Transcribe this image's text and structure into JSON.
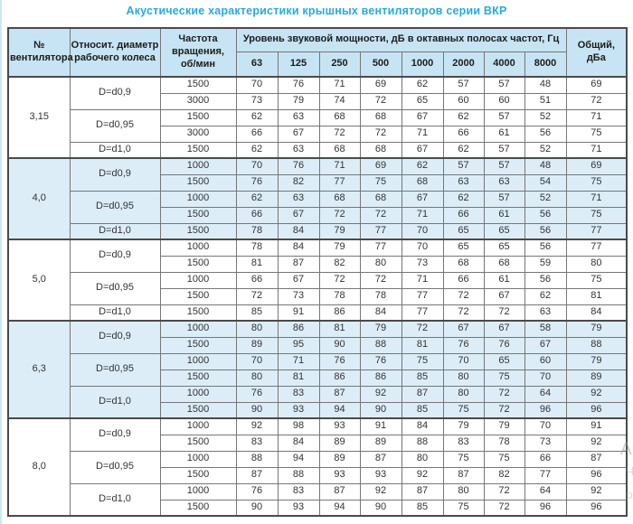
{
  "title": "Акустические характеристики крышных вентиляторов серии ВКР",
  "table": {
    "headers": {
      "fan_no": "№\nвентилятора",
      "rel_diameter": "Относит. диаметр\nрабочего колеса",
      "speed": "Частота\nвращения,\nоб/мин",
      "sound_power_span": "Уровень звуковой мощности, дБ в октавных полосах частот, Гц",
      "total": "Общий,\nдБа"
    },
    "frequencies": [
      "63",
      "125",
      "250",
      "500",
      "1000",
      "2000",
      "4000",
      "8000"
    ],
    "groups": [
      {
        "fan": "3,15",
        "highlight": false,
        "diameters": [
          {
            "label": "D=d0,9",
            "rows": [
              {
                "speed": "1500",
                "levels": [
                  70,
                  76,
                  71,
                  69,
                  62,
                  57,
                  57,
                  48
                ],
                "total": 69
              },
              {
                "speed": "3000",
                "levels": [
                  73,
                  79,
                  74,
                  72,
                  65,
                  60,
                  60,
                  51
                ],
                "total": 72
              }
            ]
          },
          {
            "label": "D=d0,95",
            "rows": [
              {
                "speed": "1500",
                "levels": [
                  62,
                  63,
                  68,
                  68,
                  67,
                  62,
                  57,
                  52
                ],
                "total": 71
              },
              {
                "speed": "3000",
                "levels": [
                  66,
                  67,
                  72,
                  72,
                  71,
                  66,
                  61,
                  56
                ],
                "total": 75
              }
            ]
          },
          {
            "label": "D=d1,0",
            "rows": [
              {
                "speed": "1500",
                "levels": [
                  62,
                  63,
                  68,
                  68,
                  67,
                  62,
                  57,
                  52
                ],
                "total": 71
              }
            ]
          }
        ]
      },
      {
        "fan": "4,0",
        "highlight": true,
        "diameters": [
          {
            "label": "D=d0,9",
            "rows": [
              {
                "speed": "1000",
                "levels": [
                  70,
                  76,
                  71,
                  69,
                  62,
                  57,
                  57,
                  48
                ],
                "total": 69
              },
              {
                "speed": "1500",
                "levels": [
                  76,
                  82,
                  77,
                  75,
                  68,
                  63,
                  63,
                  54
                ],
                "total": 75
              }
            ]
          },
          {
            "label": "D=d0,95",
            "rows": [
              {
                "speed": "1000",
                "levels": [
                  62,
                  63,
                  68,
                  68,
                  67,
                  62,
                  57,
                  52
                ],
                "total": 71
              },
              {
                "speed": "1500",
                "levels": [
                  66,
                  67,
                  72,
                  72,
                  71,
                  66,
                  61,
                  56
                ],
                "total": 75
              }
            ]
          },
          {
            "label": "D=d1,0",
            "rows": [
              {
                "speed": "1500",
                "levels": [
                  78,
                  84,
                  79,
                  77,
                  70,
                  65,
                  65,
                  56
                ],
                "total": 77
              }
            ]
          }
        ]
      },
      {
        "fan": "5,0",
        "highlight": false,
        "diameters": [
          {
            "label": "D=d0,9",
            "rows": [
              {
                "speed": "1000",
                "levels": [
                  78,
                  84,
                  79,
                  77,
                  70,
                  65,
                  65,
                  56
                ],
                "total": 77
              },
              {
                "speed": "1500",
                "levels": [
                  81,
                  87,
                  82,
                  80,
                  73,
                  68,
                  68,
                  59
                ],
                "total": 80
              }
            ]
          },
          {
            "label": "D=d0,95",
            "rows": [
              {
                "speed": "1000",
                "levels": [
                  66,
                  67,
                  72,
                  72,
                  71,
                  66,
                  61,
                  56
                ],
                "total": 75
              },
              {
                "speed": "1500",
                "levels": [
                  72,
                  73,
                  78,
                  78,
                  77,
                  72,
                  67,
                  62
                ],
                "total": 81
              }
            ]
          },
          {
            "label": "D=d1,0",
            "rows": [
              {
                "speed": "1500",
                "levels": [
                  85,
                  91,
                  86,
                  84,
                  77,
                  72,
                  72,
                  63
                ],
                "total": 84
              }
            ]
          }
        ]
      },
      {
        "fan": "6,3",
        "highlight": true,
        "diameters": [
          {
            "label": "D=d0,9",
            "rows": [
              {
                "speed": "1000",
                "levels": [
                  80,
                  86,
                  81,
                  79,
                  72,
                  67,
                  67,
                  58
                ],
                "total": 79
              },
              {
                "speed": "1500",
                "levels": [
                  89,
                  95,
                  90,
                  88,
                  81,
                  76,
                  76,
                  67
                ],
                "total": 88
              }
            ]
          },
          {
            "label": "D=d0,95",
            "rows": [
              {
                "speed": "1000",
                "levels": [
                  70,
                  71,
                  76,
                  76,
                  75,
                  70,
                  65,
                  60
                ],
                "total": 79
              },
              {
                "speed": "1500",
                "levels": [
                  80,
                  81,
                  86,
                  86,
                  85,
                  80,
                  75,
                  70
                ],
                "total": 89
              }
            ]
          },
          {
            "label": "D=d1,0",
            "rows": [
              {
                "speed": "1000",
                "levels": [
                  76,
                  83,
                  87,
                  92,
                  87,
                  80,
                  72,
                  64
                ],
                "total": 92
              },
              {
                "speed": "1500",
                "levels": [
                  90,
                  93,
                  94,
                  90,
                  85,
                  75,
                  72,
                  96
                ],
                "total": 96
              }
            ]
          }
        ]
      },
      {
        "fan": "8,0",
        "highlight": false,
        "diameters": [
          {
            "label": "D=d0,9",
            "rows": [
              {
                "speed": "1000",
                "levels": [
                  92,
                  98,
                  93,
                  91,
                  84,
                  79,
                  79,
                  70
                ],
                "total": 91
              },
              {
                "speed": "1500",
                "levels": [
                  83,
                  84,
                  89,
                  89,
                  88,
                  83,
                  78,
                  73
                ],
                "total": 92
              }
            ]
          },
          {
            "label": "D=d0,95",
            "rows": [
              {
                "speed": "1000",
                "levels": [
                  88,
                  94,
                  89,
                  87,
                  80,
                  75,
                  75,
                  66
                ],
                "total": 87
              },
              {
                "speed": "1500",
                "levels": [
                  87,
                  88,
                  93,
                  93,
                  92,
                  87,
                  82,
                  77
                ],
                "total": 96
              }
            ]
          },
          {
            "label": "D=d1,0",
            "rows": [
              {
                "speed": "1000",
                "levels": [
                  76,
                  83,
                  87,
                  92,
                  87,
                  80,
                  72,
                  64
                ],
                "total": 92
              },
              {
                "speed": "1500",
                "levels": [
                  90,
                  93,
                  94,
                  90,
                  85,
                  75,
                  72,
                  96
                ],
                "total": 96
              }
            ]
          }
        ]
      }
    ]
  },
  "watermark": {
    "fragment_1": "Ак",
    "fragment_2": "Чт",
    "fragment_3": "ра"
  },
  "colors": {
    "title": "#29a9e0",
    "header_bg": "#c6e4f3",
    "highlight_bg": "#dcedf8",
    "border": "#767676"
  }
}
